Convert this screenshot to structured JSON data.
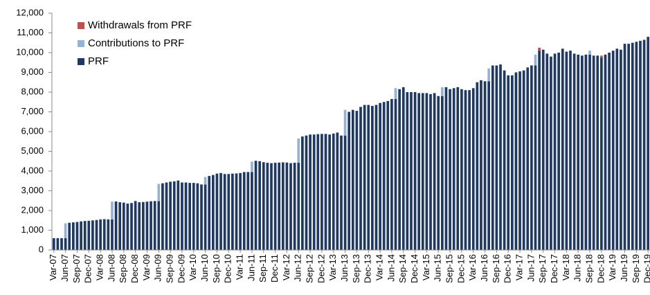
{
  "chart_data": {
    "type": "stacked_bar",
    "categories": [
      "Var-07",
      null,
      null,
      "Jun-07",
      null,
      null,
      "Sep-07",
      null,
      null,
      "Dec-07",
      null,
      null,
      "Var-08",
      null,
      null,
      "Jun-08",
      null,
      null,
      "Sep-08",
      null,
      null,
      "Dec-08",
      null,
      null,
      "Var-09",
      null,
      null,
      "Jun-09",
      null,
      null,
      "Sep-09",
      null,
      null,
      "Dec-09",
      null,
      null,
      "Var-10",
      null,
      null,
      "Jun-10",
      null,
      null,
      "Sep-10",
      null,
      null,
      "Dec-10",
      null,
      null,
      "Var-11",
      null,
      null,
      "Jun-11",
      null,
      null,
      "Sep-11",
      null,
      null,
      "Dec-11",
      null,
      null,
      "Var-12",
      null,
      null,
      "Jun-12",
      null,
      null,
      "Sep-12",
      null,
      null,
      "Dec-12",
      null,
      null,
      "Var-13",
      null,
      null,
      "Jun-13",
      null,
      null,
      "Sep-13",
      null,
      null,
      "Dec-13",
      null,
      null,
      "Var-14",
      null,
      null,
      "Jun-14",
      null,
      null,
      "Sep-14",
      null,
      null,
      "Dec-14",
      null,
      null,
      "Var-15",
      null,
      null,
      "Jun-15",
      null,
      null,
      "Sep-15",
      null,
      null,
      "Dec-15",
      null,
      null,
      "Var-16",
      null,
      null,
      "Jun-16",
      null,
      null,
      "Sep-16",
      null,
      null,
      "Dec-16",
      null,
      null,
      "Var-17",
      null,
      null,
      "Jun-17",
      null,
      null,
      "Sep-17",
      null,
      null,
      "Dec-17",
      null,
      null,
      "Var-18",
      null,
      null,
      "Jun-18",
      null,
      null,
      "Sep-18",
      null,
      null,
      "Dec-18",
      null,
      null,
      "Var-19",
      null,
      null,
      "Jun-19",
      null,
      null,
      "Sep-19",
      null,
      null,
      "Dec-19"
    ],
    "series": [
      {
        "name": "PRF",
        "color": "#1f3864",
        "values": [
          600,
          600,
          600,
          600,
          1380,
          1400,
          1420,
          1450,
          1470,
          1480,
          1500,
          1520,
          1550,
          1560,
          1550,
          1550,
          2460,
          2420,
          2400,
          2350,
          2380,
          2480,
          2420,
          2430,
          2450,
          2470,
          2480,
          2480,
          3380,
          3420,
          3460,
          3480,
          3520,
          3420,
          3420,
          3400,
          3400,
          3380,
          3320,
          3320,
          3750,
          3800,
          3870,
          3900,
          3850,
          3850,
          3870,
          3880,
          3900,
          3950,
          3950,
          3950,
          4520,
          4500,
          4450,
          4420,
          4400,
          4420,
          4430,
          4440,
          4430,
          4400,
          4420,
          4420,
          5750,
          5800,
          5850,
          5850,
          5870,
          5880,
          5880,
          5850,
          5900,
          5950,
          5800,
          5800,
          7000,
          7100,
          7050,
          7250,
          7350,
          7350,
          7300,
          7350,
          7450,
          7500,
          7550,
          7650,
          7650,
          8150,
          8250,
          8000,
          8000,
          8000,
          7950,
          7950,
          7950,
          7900,
          7950,
          7800,
          7800,
          8250,
          8150,
          8200,
          8250,
          8150,
          8100,
          8100,
          8200,
          8500,
          8600,
          8550,
          8550,
          9350,
          9350,
          9400,
          9100,
          8850,
          8850,
          9000,
          9050,
          9100,
          9250,
          9350,
          9350,
          10100,
          10150,
          9950,
          9800,
          9950,
          10000,
          10200,
          10050,
          10100,
          9950,
          9900,
          9850,
          9900,
          9900,
          9850,
          9850,
          9750,
          9900,
          10000,
          10100,
          10200,
          10150,
          10450,
          10450,
          10500,
          10550,
          10600,
          10650,
          10800
        ]
      },
      {
        "name": "Contributions to PRF",
        "color": "#95b3d7",
        "values": [
          0,
          0,
          0,
          750,
          0,
          0,
          0,
          0,
          0,
          0,
          0,
          0,
          0,
          0,
          0,
          900,
          0,
          0,
          0,
          0,
          0,
          0,
          0,
          0,
          0,
          0,
          0,
          870,
          0,
          0,
          0,
          0,
          0,
          0,
          0,
          0,
          0,
          0,
          0,
          380,
          0,
          0,
          0,
          0,
          0,
          0,
          0,
          0,
          0,
          0,
          0,
          530,
          0,
          0,
          0,
          0,
          0,
          0,
          0,
          0,
          0,
          0,
          0,
          1230,
          0,
          0,
          0,
          0,
          0,
          0,
          0,
          0,
          0,
          0,
          0,
          1300,
          0,
          0,
          0,
          0,
          0,
          0,
          0,
          0,
          0,
          0,
          0,
          0,
          550,
          0,
          0,
          0,
          0,
          0,
          0,
          0,
          0,
          0,
          0,
          0,
          450,
          0,
          0,
          0,
          0,
          0,
          0,
          0,
          0,
          0,
          0,
          0,
          650,
          0,
          0,
          0,
          0,
          0,
          0,
          0,
          0,
          0,
          0,
          0,
          550,
          0,
          0,
          0,
          0,
          0,
          0,
          0,
          0,
          0,
          0,
          0,
          0,
          0,
          200,
          0,
          0,
          0,
          0,
          0,
          0,
          0,
          0,
          0,
          0,
          0,
          0,
          0,
          0,
          0
        ]
      },
      {
        "name": "Withdrawals from PRF",
        "color": "#c0504d",
        "values": [
          0,
          0,
          0,
          0,
          0,
          0,
          0,
          0,
          0,
          0,
          0,
          0,
          0,
          0,
          0,
          0,
          0,
          0,
          0,
          0,
          0,
          0,
          0,
          0,
          0,
          0,
          0,
          0,
          0,
          0,
          0,
          0,
          0,
          0,
          0,
          0,
          0,
          0,
          0,
          0,
          0,
          0,
          0,
          0,
          0,
          0,
          0,
          0,
          0,
          0,
          0,
          0,
          0,
          0,
          0,
          0,
          0,
          0,
          0,
          0,
          0,
          0,
          0,
          0,
          0,
          0,
          0,
          0,
          0,
          0,
          0,
          0,
          0,
          0,
          0,
          0,
          0,
          0,
          0,
          0,
          0,
          0,
          0,
          0,
          0,
          0,
          0,
          0,
          0,
          0,
          0,
          0,
          0,
          0,
          0,
          0,
          0,
          0,
          0,
          0,
          0,
          0,
          0,
          0,
          0,
          0,
          0,
          0,
          0,
          0,
          0,
          0,
          0,
          0,
          0,
          0,
          0,
          0,
          0,
          0,
          0,
          0,
          0,
          0,
          0,
          150,
          0,
          0,
          0,
          0,
          0,
          0,
          0,
          0,
          0,
          0,
          0,
          0,
          0,
          0,
          0,
          100,
          0,
          0,
          0,
          0,
          0,
          0,
          0,
          0,
          0,
          0,
          0,
          0
        ]
      }
    ],
    "ylim": [
      0,
      12000
    ],
    "yticks": [
      0,
      {
        "value": 1000,
        "label": "1,000"
      },
      {
        "value": 2000,
        "label": "2,000"
      },
      {
        "value": 3000,
        "label": "3,000"
      },
      {
        "value": 4000,
        "label": "4,000"
      },
      {
        "value": 5000,
        "label": "5,000"
      },
      {
        "value": 6000,
        "label": "6,000"
      },
      {
        "value": 7000,
        "label": "7,000"
      },
      {
        "value": 8000,
        "label": "8,000"
      },
      {
        "value": 9000,
        "label": "9,000"
      },
      {
        "value": 10000,
        "label": "10,000"
      },
      {
        "value": 11000,
        "label": "11,000"
      },
      {
        "value": 12000,
        "label": "12,000"
      }
    ],
    "legend": "top-left"
  }
}
